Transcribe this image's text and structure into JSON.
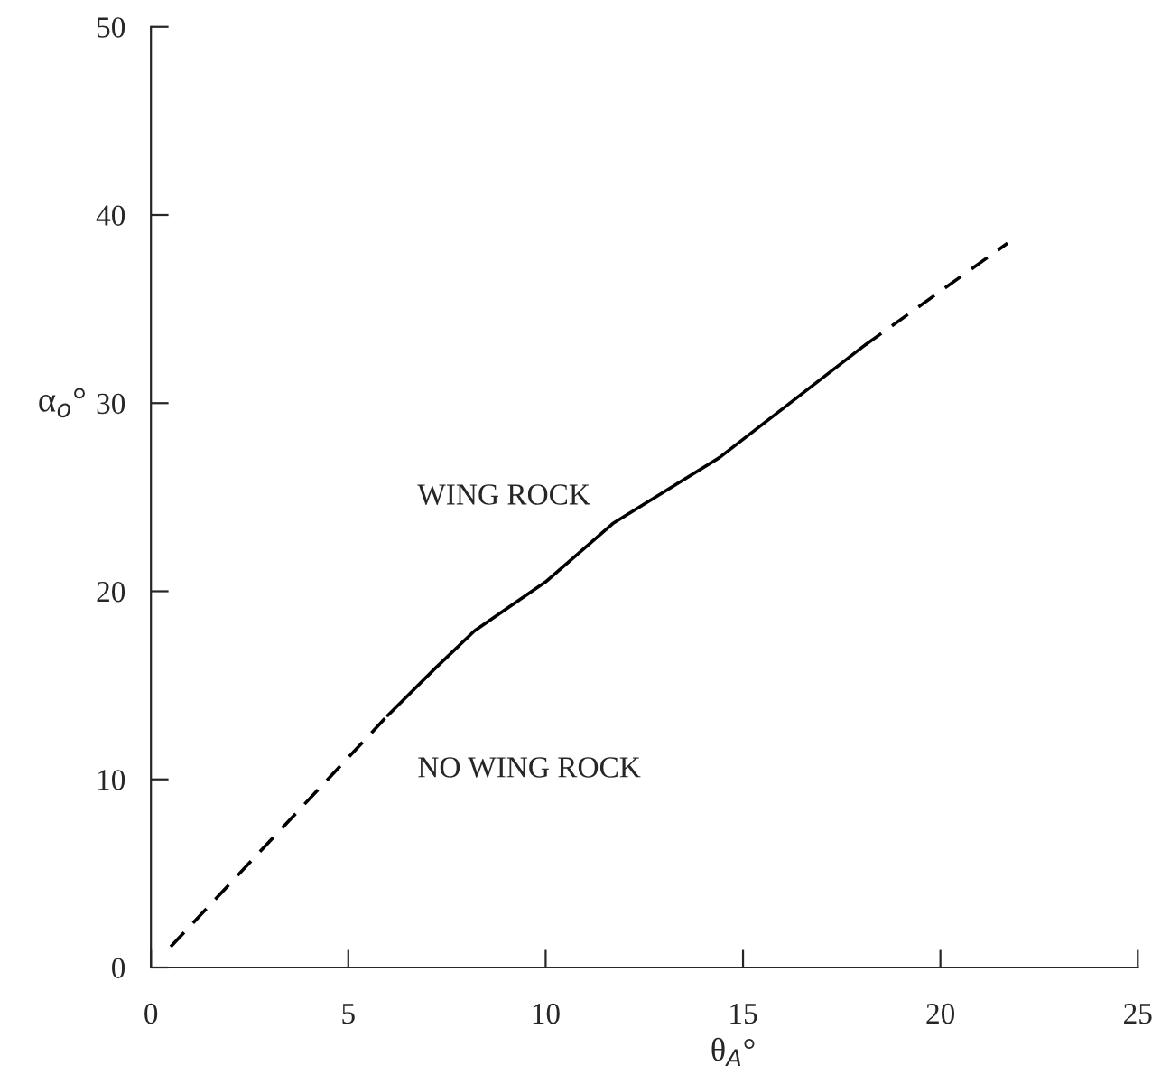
{
  "chart_data": {
    "type": "line",
    "xlabel": "θ$_{A}$°",
    "ylabel": "α$_{o}$°",
    "xlim": [
      0,
      25
    ],
    "ylim": [
      0,
      50
    ],
    "xticks": [
      0,
      5,
      10,
      15,
      20,
      25
    ],
    "yticks": [
      0,
      10,
      20,
      30,
      40,
      50
    ],
    "grid": false,
    "legend": false,
    "series": [
      {
        "color": "#000000",
        "line_style": "dashed",
        "x": [
          0.5,
          6.0
        ],
        "values": [
          1.1,
          13.4
        ]
      },
      {
        "color": "#000000",
        "line_style": "solid",
        "x": [
          6.0,
          7.2,
          8.2,
          10.0,
          11.7,
          14.4,
          18.1
        ],
        "values": [
          13.4,
          15.9,
          17.9,
          20.5,
          23.6,
          27.1,
          33.1
        ]
      },
      {
        "color": "#000000",
        "line_style": "dashed",
        "x": [
          18.1,
          21.7
        ],
        "values": [
          33.1,
          38.5
        ]
      }
    ],
    "annotations": [
      "WING ROCK",
      "NO WING ROCK"
    ]
  }
}
